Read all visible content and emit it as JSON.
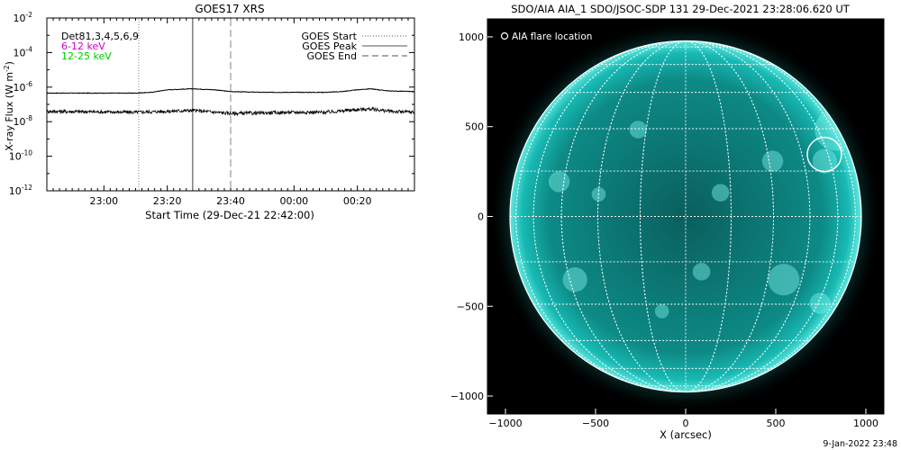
{
  "goes_panel": {
    "title": "GOES17 XRS",
    "xlabel": "Start Time (29-Dec-21 22:42:00)",
    "ylabel_main": "X-ray Flux (W m",
    "ylabel_exp": "-2",
    "ylabel_close": ")",
    "legend_top_left": [
      {
        "text": "Det81,3,4,5,6,9",
        "color": "#000000"
      },
      {
        "text": "6-12 keV",
        "color": "#cc00cc"
      },
      {
        "text": "12-25 keV",
        "color": "#00cc00"
      }
    ],
    "legend_top_right": [
      {
        "text": "GOES Start",
        "style": "dotted"
      },
      {
        "text": "GOES Peak",
        "style": "solid"
      },
      {
        "text": "GOES End",
        "style": "dashed"
      }
    ]
  },
  "aia_panel": {
    "title": "SDO/AIA AIA_1 SDO/JSOC-SDP 131 29-Dec-2021 23:28:06.620 UT",
    "legend": "AIA flare location",
    "xlabel": "X (arcsec)",
    "colors": {
      "background": "#000000",
      "sun": "#0fb5b0",
      "grid": "#ffffff"
    }
  },
  "footer": {
    "timestamp": "9-Jan-2022 23:48"
  },
  "chart_data": [
    {
      "type": "line",
      "title": "GOES17 XRS",
      "xlabel": "Start Time (29-Dec-21 22:42:00)",
      "ylabel": "X-ray Flux (W m^-2)",
      "yscale": "log",
      "ylim": [
        1e-12,
        0.01
      ],
      "xlim": [
        "22:42",
        "00:38"
      ],
      "x_ticks": [
        "23:00",
        "23:20",
        "23:40",
        "00:00",
        "00:20"
      ],
      "y_ticks": [
        {
          "value": 0.01,
          "label": "10",
          "exp": "-2"
        },
        {
          "value": 0.0001,
          "label": "10",
          "exp": "-4"
        },
        {
          "value": 1e-06,
          "label": "10",
          "exp": "-6"
        },
        {
          "value": 1e-08,
          "label": "10",
          "exp": "-8"
        },
        {
          "value": 1e-10,
          "label": "10",
          "exp": "-10"
        },
        {
          "value": 1e-12,
          "label": "10",
          "exp": "-12"
        }
      ],
      "series": [
        {
          "name": "",
          "color": "#000000",
          "x": [
            "22:42",
            "23:10",
            "23:15",
            "23:20",
            "23:28",
            "23:35",
            "23:40",
            "23:50",
            "00:00",
            "00:10",
            "00:15",
            "00:20",
            "00:24",
            "00:30",
            "00:38"
          ],
          "y": [
            4.5e-07,
            4.5e-07,
            5e-07,
            7e-07,
            8e-07,
            7e-07,
            5.5e-07,
            5e-07,
            5e-07,
            5e-07,
            5.5e-07,
            7e-07,
            8e-07,
            6e-07,
            5.5e-07
          ]
        },
        {
          "name": "",
          "color": "#000000",
          "x": [
            "22:42",
            "23:10",
            "23:20",
            "23:28",
            "23:40",
            "23:50",
            "00:00",
            "00:10",
            "00:20",
            "00:24",
            "00:30",
            "00:38"
          ],
          "y": [
            4e-08,
            3.5e-08,
            4e-08,
            4.5e-08,
            3e-08,
            3.2e-08,
            3.5e-08,
            3.5e-08,
            5e-08,
            5.5e-08,
            4e-08,
            3.5e-08
          ]
        }
      ],
      "markers": [
        {
          "name": "GOES Start",
          "time": "23:11",
          "style": "dotted"
        },
        {
          "name": "GOES Peak",
          "time": "23:28",
          "style": "solid"
        },
        {
          "name": "GOES End",
          "time": "23:40",
          "style": "dashed"
        }
      ],
      "legend": "top-right",
      "grid": false
    },
    {
      "type": "scatter",
      "title": "SDO/AIA AIA_1 SDO/JSOC-SDP 131 29-Dec-2021 23:28:06.620 UT",
      "xlabel": "X (arcsec)",
      "ylabel": "",
      "xlim": [
        -1100,
        1100
      ],
      "ylim": [
        -1100,
        1100
      ],
      "x_ticks": [
        -1000,
        -500,
        0,
        500,
        1000
      ],
      "y_ticks": [
        1000,
        500,
        0,
        -500,
        -1000
      ],
      "solar_radius_arcsec": 975,
      "flare_location": {
        "name": "AIA flare location",
        "x": 770,
        "y": 345
      },
      "legend": "top-left",
      "grid": true
    }
  ]
}
